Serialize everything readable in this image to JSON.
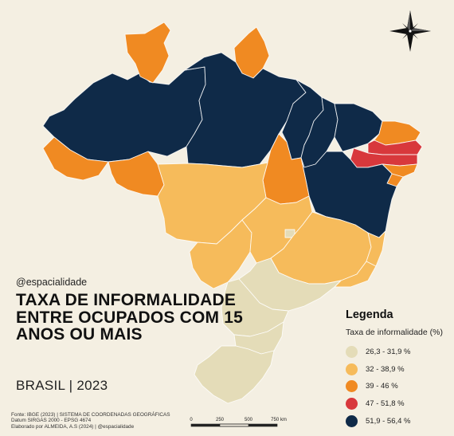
{
  "handle": "@espacialidade",
  "title": "Taxa de informalidade entre ocupados com 15 anos ou mais",
  "subtitle": "BRASIL | 2023",
  "legend": {
    "title": "Legenda",
    "subtitle": "Taxa de informalidade (%)",
    "items": [
      {
        "label": "26,3 - 31,9 %",
        "color": "#e4dcb8"
      },
      {
        "label": "32 - 38,9 %",
        "color": "#f6bb5b"
      },
      {
        "label": "39 - 46 %",
        "color": "#f08a22"
      },
      {
        "label": "47 - 51,8 %",
        "color": "#d8383c"
      },
      {
        "label": "51,9 - 56,4 %",
        "color": "#0f2a48"
      }
    ]
  },
  "credits": [
    "Fonte: IBGE (2023) | SISTEMA DE COORDENADAS GEOGRÁFICAS",
    "Datum SIRGAS 2000 - EPSG 4674",
    "Elaborado por ALMEIDA, A.S (2024) | @espacialidade"
  ],
  "scale_bar": {
    "ticks": [
      "0",
      "250",
      "500",
      "750 km"
    ]
  },
  "north_arrow_icon": "compass-rose-icon",
  "regions": [
    {
      "name": "Amazonas",
      "class": "51,9 - 56,4 %"
    },
    {
      "name": "Roraima",
      "class": "39 - 46 %"
    },
    {
      "name": "Amapá",
      "class": "39 - 46 %"
    },
    {
      "name": "Pará",
      "class": "51,9 - 56,4 %"
    },
    {
      "name": "Maranhão",
      "class": "51,9 - 56,4 %"
    },
    {
      "name": "Piauí",
      "class": "51,9 - 56,4 %"
    },
    {
      "name": "Ceará",
      "class": "51,9 - 56,4 %"
    },
    {
      "name": "Rio Grande do Norte",
      "class": "39 - 46 %"
    },
    {
      "name": "Paraíba",
      "class": "47 - 51,8 %"
    },
    {
      "name": "Pernambuco",
      "class": "47 - 51,8 %"
    },
    {
      "name": "Alagoas",
      "class": "39 - 46 %"
    },
    {
      "name": "Sergipe",
      "class": "39 - 46 %"
    },
    {
      "name": "Bahia",
      "class": "51,9 - 56,4 %"
    },
    {
      "name": "Acre",
      "class": "39 - 46 %"
    },
    {
      "name": "Rondônia",
      "class": "39 - 46 %"
    },
    {
      "name": "Tocantins",
      "class": "39 - 46 %"
    },
    {
      "name": "Mato Grosso",
      "class": "32 - 38,9 %"
    },
    {
      "name": "Mato Grosso do Sul",
      "class": "32 - 38,9 %"
    },
    {
      "name": "Goiás",
      "class": "32 - 38,9 %"
    },
    {
      "name": "Distrito Federal",
      "class": "26,3 - 31,9 %"
    },
    {
      "name": "Minas Gerais",
      "class": "32 - 38,9 %"
    },
    {
      "name": "Espírito Santo",
      "class": "32 - 38,9 %"
    },
    {
      "name": "Rio de Janeiro",
      "class": "32 - 38,9 %"
    },
    {
      "name": "São Paulo",
      "class": "26,3 - 31,9 %"
    },
    {
      "name": "Paraná",
      "class": "26,3 - 31,9 %"
    },
    {
      "name": "Santa Catarina",
      "class": "26,3 - 31,9 %"
    },
    {
      "name": "Rio Grande do Sul",
      "class": "26,3 - 31,9 %"
    }
  ]
}
